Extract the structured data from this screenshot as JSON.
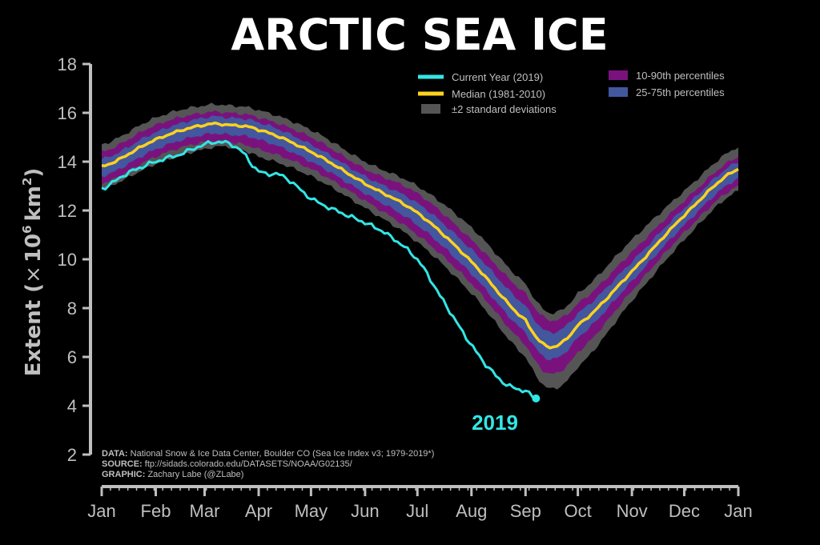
{
  "chart_data": {
    "type": "area",
    "title": "ARCTIC SEA ICE",
    "ylabel_main": "Extent (",
    "ylabel_times": "×",
    "ylabel_ten": "10",
    "ylabel_exp6": "6",
    "ylabel_km": "km",
    "ylabel_exp2": "2",
    "ylabel_close": ")",
    "ylim": [
      2,
      18
    ],
    "yticks": [
      "2",
      "4",
      "6",
      "8",
      "10",
      "12",
      "14",
      "16",
      "18"
    ],
    "x_month_ticks": [
      "Jan",
      "Feb",
      "Mar",
      "Apr",
      "May",
      "Jun",
      "Jul",
      "Aug",
      "Sep",
      "Oct",
      "Nov",
      "Dec",
      "Jan"
    ],
    "xlim_days": [
      1,
      366
    ],
    "legend": {
      "placement": "top-right",
      "entries": [
        {
          "label": "Current Year (2019)",
          "kind": "line",
          "color": "#32E6E6"
        },
        {
          "label": "Median (1981-2010)",
          "kind": "line",
          "color": "#FFD21E"
        },
        {
          "label": "±2 standard deviations",
          "kind": "patch",
          "color": "#555555"
        },
        {
          "label": "10-90th percentiles",
          "kind": "patch",
          "color": "#7A127E"
        },
        {
          "label": "25-75th percentiles",
          "kind": "patch",
          "color": "#42579E"
        }
      ]
    },
    "colors": {
      "current": "#32E6E6",
      "median": "#FFD21E",
      "std": "#555555",
      "p10_90": "#7A127E",
      "p25_75": "#42579E",
      "axis": "#BFBFBF",
      "label": "#BFBFBF"
    },
    "series": {
      "day": [
        1,
        32,
        60,
        74,
        91,
        121,
        152,
        182,
        213,
        244,
        258,
        274,
        305,
        335,
        366
      ],
      "median": [
        13.8,
        14.9,
        15.5,
        15.5,
        15.3,
        14.4,
        13.1,
        11.9,
        9.9,
        7.5,
        6.4,
        7.3,
        9.5,
        11.8,
        13.7
      ],
      "p25": [
        13.4,
        14.5,
        15.1,
        15.1,
        14.9,
        14.0,
        12.7,
        11.4,
        9.4,
        7.0,
        5.9,
        6.8,
        9.1,
        11.4,
        13.3
      ],
      "p75": [
        14.1,
        15.2,
        15.8,
        15.8,
        15.6,
        14.7,
        13.4,
        12.3,
        10.4,
        8.1,
        7.0,
        7.8,
        9.9,
        12.1,
        14.0
      ],
      "p10": [
        13.1,
        14.2,
        14.8,
        14.8,
        14.5,
        13.7,
        12.4,
        11.0,
        9.0,
        6.5,
        5.3,
        6.2,
        8.7,
        11.1,
        13.0
      ],
      "p90": [
        14.4,
        15.5,
        16.0,
        16.0,
        15.8,
        15.0,
        13.7,
        12.7,
        10.8,
        8.6,
        7.5,
        8.2,
        10.3,
        12.4,
        14.2
      ],
      "std_low": [
        12.9,
        13.9,
        14.5,
        14.6,
        14.2,
        13.4,
        12.1,
        10.7,
        8.6,
        6.0,
        4.7,
        5.6,
        8.3,
        10.8,
        12.8
      ],
      "std_high": [
        14.7,
        15.8,
        16.3,
        16.3,
        16.1,
        15.3,
        14.0,
        13.0,
        11.3,
        9.0,
        7.8,
        8.6,
        10.8,
        12.8,
        14.6
      ]
    },
    "current_year": {
      "day": [
        1,
        15,
        32,
        46,
        60,
        70,
        80,
        91,
        105,
        121,
        135,
        152,
        165,
        182,
        195,
        210,
        225,
        235,
        244,
        250
      ],
      "value": [
        12.9,
        13.5,
        14.0,
        14.3,
        14.7,
        14.8,
        14.5,
        13.6,
        13.4,
        12.5,
        12.0,
        11.5,
        11.0,
        10.0,
        8.5,
        6.8,
        5.4,
        4.8,
        4.6,
        4.3
      ]
    },
    "end_label": "2019",
    "footnote": {
      "data_key": "DATA:",
      "data_val": "National Snow & Ice Data Center, Boulder CO (Sea Ice Index v3; 1979-2019*)",
      "source_key": "SOURCE:",
      "source_val": "ftp://sidads.colorado.edu/DATASETS/NOAA/G02135/",
      "graphic_key": "GRAPHIC:",
      "graphic_val": "Zachary Labe (@ZLabe)"
    }
  }
}
